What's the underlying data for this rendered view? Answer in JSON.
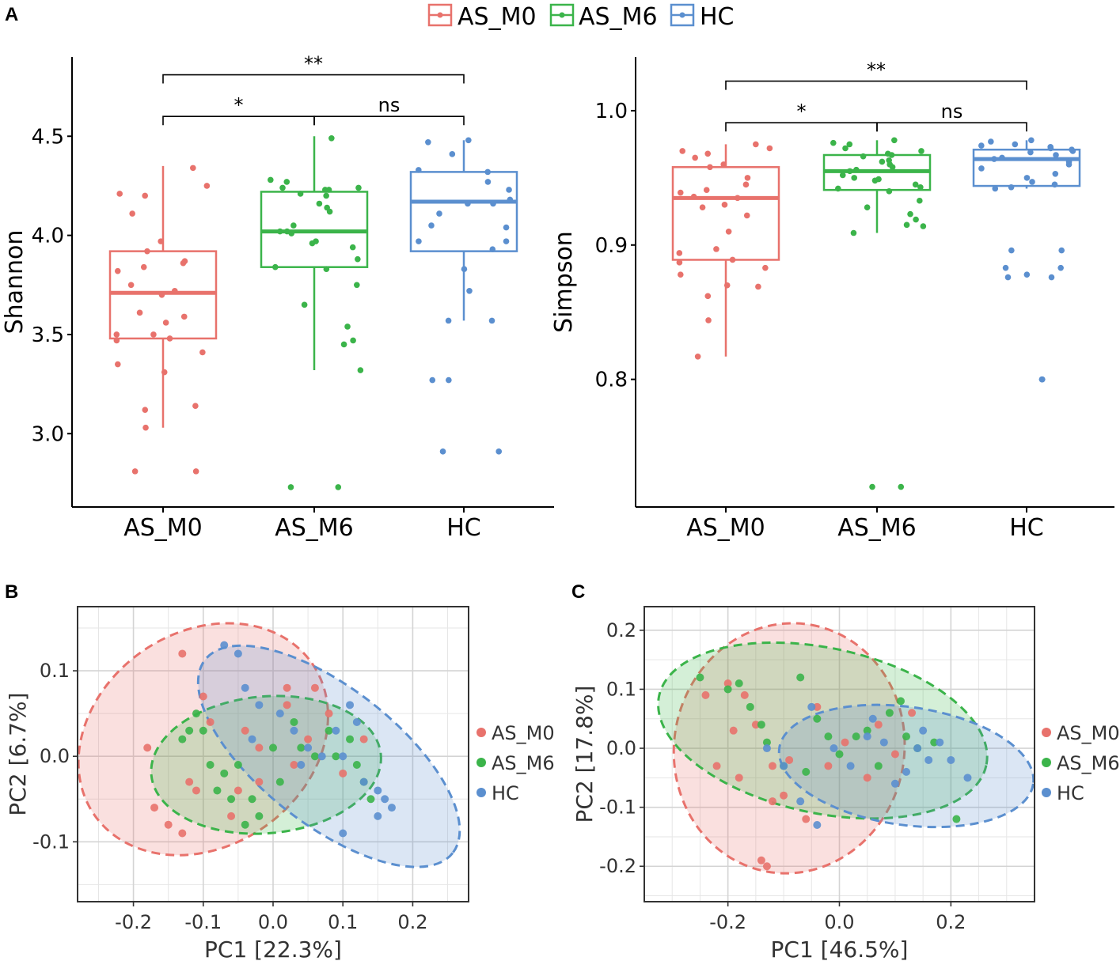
{
  "colors": {
    "AS_M0": "#E8726C",
    "AS_M6": "#3BB44A",
    "HC": "#5B8FCF"
  },
  "legend_top": {
    "items": [
      "AS_M0",
      "AS_M6",
      "HC"
    ]
  },
  "chart_data": [
    {
      "panel": "A",
      "type": "box",
      "ylabel": "Shannon",
      "categories": [
        "AS_M0",
        "AS_M6",
        "HC"
      ],
      "ylim": [
        2.63,
        4.9
      ],
      "yticks": [
        3.0,
        3.5,
        4.0,
        4.5
      ],
      "ytick_labels": [
        "3.0",
        "3.5",
        "4.0",
        "4.5"
      ],
      "boxes": [
        {
          "group": "AS_M0",
          "q1": 3.48,
          "median": 3.71,
          "q3": 3.92,
          "whisker_low": 3.03,
          "whisker_high": 4.35
        },
        {
          "group": "AS_M6",
          "q1": 3.84,
          "median": 4.02,
          "q3": 4.22,
          "whisker_low": 3.32,
          "whisker_high": 4.5
        },
        {
          "group": "HC",
          "q1": 3.92,
          "median": 4.17,
          "q3": 4.32,
          "whisker_low": 3.57,
          "whisker_high": 4.48
        }
      ],
      "points": {
        "AS_M0": [
          4.34,
          4.25,
          4.21,
          4.2,
          4.11,
          3.97,
          3.92,
          3.87,
          3.86,
          3.84,
          3.82,
          3.75,
          3.72,
          3.7,
          3.61,
          3.59,
          3.56,
          3.5,
          3.5,
          3.48,
          3.47,
          3.41,
          3.35,
          3.31,
          3.14,
          3.12,
          3.03,
          2.81,
          2.81
        ],
        "AS_M6": [
          4.49,
          4.28,
          4.27,
          4.24,
          4.24,
          4.23,
          4.23,
          4.21,
          4.2,
          4.16,
          4.14,
          4.12,
          4.05,
          4.02,
          4.02,
          4.01,
          3.97,
          3.96,
          3.94,
          3.88,
          3.84,
          3.83,
          3.75,
          3.65,
          3.54,
          3.47,
          3.45,
          3.32,
          2.73,
          2.73
        ],
        "HC": [
          4.48,
          4.47,
          4.41,
          4.33,
          4.32,
          4.27,
          4.23,
          4.18,
          4.16,
          4.16,
          4.11,
          4.05,
          4.04,
          3.97,
          3.97,
          3.93,
          3.83,
          3.72,
          3.57,
          3.57,
          3.27,
          3.27,
          2.91,
          2.91
        ]
      },
      "brackets": [
        {
          "from": "AS_M0",
          "to": "HC",
          "label": "**",
          "y": 4.81
        },
        {
          "from": "AS_M0",
          "to": "AS_M6",
          "label": "*",
          "y": 4.6
        },
        {
          "from": "AS_M6",
          "to": "HC",
          "label": "ns",
          "y": 4.6
        }
      ]
    },
    {
      "panel": "A2",
      "type": "box",
      "ylabel": "Simpson",
      "categories": [
        "AS_M0",
        "AS_M6",
        "HC"
      ],
      "ylim": [
        0.705,
        1.04
      ],
      "yticks": [
        0.8,
        0.9,
        1.0
      ],
      "ytick_labels": [
        "0.8",
        "0.9",
        "1.0"
      ],
      "boxes": [
        {
          "group": "AS_M0",
          "q1": 0.889,
          "median": 0.935,
          "q3": 0.958,
          "whisker_low": 0.817,
          "whisker_high": 0.975
        },
        {
          "group": "AS_M6",
          "q1": 0.941,
          "median": 0.955,
          "q3": 0.967,
          "whisker_low": 0.909,
          "whisker_high": 0.978
        },
        {
          "group": "HC",
          "q1": 0.944,
          "median": 0.964,
          "q3": 0.971,
          "whisker_low": 0.942,
          "whisker_high": 0.978
        }
      ],
      "points": {
        "AS_M0": [
          0.975,
          0.972,
          0.97,
          0.968,
          0.965,
          0.96,
          0.958,
          0.95,
          0.945,
          0.941,
          0.939,
          0.936,
          0.935,
          0.93,
          0.928,
          0.922,
          0.91,
          0.897,
          0.894,
          0.889,
          0.887,
          0.883,
          0.878,
          0.87,
          0.869,
          0.862,
          0.844,
          0.817
        ],
        "AS_M6": [
          0.978,
          0.976,
          0.975,
          0.972,
          0.97,
          0.968,
          0.967,
          0.966,
          0.963,
          0.962,
          0.96,
          0.958,
          0.956,
          0.955,
          0.952,
          0.95,
          0.949,
          0.948,
          0.945,
          0.943,
          0.942,
          0.94,
          0.933,
          0.928,
          0.923,
          0.919,
          0.915,
          0.914,
          0.909,
          0.72,
          0.72
        ],
        "HC": [
          0.978,
          0.977,
          0.975,
          0.974,
          0.973,
          0.972,
          0.971,
          0.97,
          0.969,
          0.967,
          0.965,
          0.964,
          0.962,
          0.96,
          0.957,
          0.953,
          0.95,
          0.947,
          0.945,
          0.943,
          0.942,
          0.896,
          0.896,
          0.883,
          0.883,
          0.878,
          0.876,
          0.876,
          0.8,
          0.8
        ]
      },
      "brackets": [
        {
          "from": "AS_M0",
          "to": "HC",
          "label": "**",
          "y": 1.022
        },
        {
          "from": "AS_M0",
          "to": "AS_M6",
          "label": "*",
          "y": 0.991
        },
        {
          "from": "AS_M6",
          "to": "HC",
          "label": "ns",
          "y": 0.991
        }
      ]
    },
    {
      "panel": "B",
      "type": "scatter",
      "xlabel": "PC1 [22.3%]",
      "ylabel": "PC2 [6.7%]",
      "xlim": [
        -0.28,
        0.28
      ],
      "ylim": [
        -0.17,
        0.175
      ],
      "xticks": [
        -0.2,
        -0.1,
        0.0,
        0.1,
        0.2
      ],
      "xtick_labels": [
        "-0.2",
        "-0.1",
        "0.0",
        "0.1",
        "0.2"
      ],
      "yticks": [
        -0.1,
        0.0,
        0.1
      ],
      "ytick_labels": [
        "-0.1",
        "0.0",
        "0.1"
      ],
      "legend": [
        "AS_M0",
        "AS_M6",
        "HC"
      ],
      "ellipses": [
        {
          "group": "AS_M0",
          "cx": -0.1,
          "cy": 0.02,
          "rx": 0.19,
          "ry": 0.125,
          "angle": 35
        },
        {
          "group": "AS_M6",
          "cx": -0.01,
          "cy": -0.01,
          "rx": 0.165,
          "ry": 0.08,
          "angle": 5
        },
        {
          "group": "HC",
          "cx": 0.08,
          "cy": 0.0,
          "rx": 0.225,
          "ry": 0.08,
          "angle": -38
        }
      ],
      "points": {
        "AS_M0": [
          [
            -0.13,
            0.12
          ],
          [
            -0.1,
            0.07
          ],
          [
            -0.09,
            0.04
          ],
          [
            -0.02,
            0.01
          ],
          [
            0.02,
            0.08
          ],
          [
            0.06,
            0.08
          ],
          [
            -0.04,
            0.03
          ],
          [
            0.05,
            0.02
          ],
          [
            -0.18,
            0.01
          ],
          [
            -0.12,
            -0.03
          ],
          [
            -0.11,
            -0.04
          ],
          [
            -0.17,
            -0.06
          ],
          [
            -0.15,
            -0.08
          ],
          [
            -0.13,
            -0.09
          ],
          [
            -0.06,
            -0.07
          ],
          [
            -0.05,
            -0.04
          ],
          [
            0.02,
            0.06
          ],
          [
            0.08,
            0.05
          ],
          [
            0.03,
            -0.01
          ],
          [
            0.1,
            -0.02
          ],
          [
            0.13,
            0.02
          ],
          [
            -0.02,
            -0.03
          ]
        ],
        "AS_M6": [
          [
            -0.11,
            0.05
          ],
          [
            -0.12,
            0.03
          ],
          [
            -0.13,
            0.02
          ],
          [
            -0.1,
            0.03
          ],
          [
            -0.09,
            -0.01
          ],
          [
            -0.07,
            -0.02
          ],
          [
            -0.06,
            -0.05
          ],
          [
            -0.05,
            -0.01
          ],
          [
            -0.03,
            -0.05
          ],
          [
            -0.02,
            -0.07
          ],
          [
            0.01,
            -0.03
          ],
          [
            0.03,
            0.04
          ],
          [
            0.04,
            0.01
          ],
          [
            0.06,
            0.0
          ],
          [
            0.08,
            0.03
          ],
          [
            0.09,
            0.0
          ],
          [
            0.11,
            0.02
          ],
          [
            0.13,
            -0.03
          ],
          [
            0.12,
            -0.01
          ],
          [
            0.14,
            -0.05
          ],
          [
            -0.08,
            -0.04
          ],
          [
            -0.04,
            -0.08
          ],
          [
            0.0,
            0.01
          ]
        ],
        "HC": [
          [
            -0.07,
            0.13
          ],
          [
            -0.05,
            0.12
          ],
          [
            -0.04,
            0.08
          ],
          [
            -0.02,
            0.06
          ],
          [
            0.01,
            0.05
          ],
          [
            0.03,
            0.03
          ],
          [
            0.05,
            0.01
          ],
          [
            0.07,
            0.0
          ],
          [
            0.09,
            0.03
          ],
          [
            0.11,
            0.06
          ],
          [
            0.12,
            0.04
          ],
          [
            0.1,
            0.0
          ],
          [
            0.13,
            -0.03
          ],
          [
            0.15,
            -0.04
          ],
          [
            0.16,
            -0.05
          ],
          [
            0.17,
            -0.06
          ],
          [
            0.15,
            -0.07
          ],
          [
            0.1,
            -0.09
          ],
          [
            -0.03,
            0.02
          ],
          [
            0.04,
            -0.01
          ]
        ]
      }
    },
    {
      "panel": "C",
      "type": "scatter",
      "xlabel": "PC1 [46.5%]",
      "ylabel": "PC2 [17.8%]",
      "xlim": [
        -0.35,
        0.35
      ],
      "ylim": [
        -0.26,
        0.24
      ],
      "xticks": [
        -0.2,
        0.0,
        0.2
      ],
      "xtick_labels": [
        "-0.2",
        "0.0",
        "0.2"
      ],
      "yticks": [
        -0.2,
        -0.1,
        0.0,
        0.1,
        0.2
      ],
      "ytick_labels": [
        "-0.2",
        "-0.1",
        "0.0",
        "0.1",
        "0.2"
      ],
      "legend": [
        "AS_M0",
        "AS_M6",
        "HC"
      ],
      "ellipses": [
        {
          "group": "AS_M0",
          "cx": -0.09,
          "cy": 0.0,
          "rx": 0.225,
          "ry": 0.195,
          "angle": 80
        },
        {
          "group": "AS_M6",
          "cx": -0.03,
          "cy": 0.03,
          "rx": 0.3,
          "ry": 0.14,
          "angle": -12
        },
        {
          "group": "HC",
          "cx": 0.12,
          "cy": -0.03,
          "rx": 0.23,
          "ry": 0.1,
          "angle": -8
        }
      ],
      "points": {
        "AS_M0": [
          [
            -0.24,
            0.09
          ],
          [
            -0.2,
            0.11
          ],
          [
            -0.17,
            0.09
          ],
          [
            -0.15,
            0.04
          ],
          [
            -0.19,
            0.03
          ],
          [
            -0.22,
            -0.03
          ],
          [
            -0.18,
            -0.05
          ],
          [
            -0.12,
            -0.03
          ],
          [
            -0.1,
            -0.08
          ],
          [
            -0.06,
            -0.12
          ],
          [
            -0.13,
            -0.2
          ],
          [
            -0.14,
            -0.19
          ],
          [
            -0.04,
            0.07
          ],
          [
            -0.02,
            -0.03
          ],
          [
            0.01,
            0.01
          ],
          [
            0.05,
            -0.05
          ],
          [
            0.07,
            0.04
          ],
          [
            0.1,
            -0.01
          ],
          [
            0.13,
            0.06
          ],
          [
            -0.09,
            -0.02
          ],
          [
            -0.12,
            -0.09
          ]
        ],
        "AS_M6": [
          [
            -0.25,
            0.12
          ],
          [
            -0.2,
            0.1
          ],
          [
            -0.18,
            0.11
          ],
          [
            -0.16,
            0.07
          ],
          [
            -0.14,
            0.04
          ],
          [
            -0.13,
            0.01
          ],
          [
            -0.1,
            -0.03
          ],
          [
            -0.07,
            0.12
          ],
          [
            -0.04,
            0.05
          ],
          [
            -0.02,
            0.02
          ],
          [
            0.0,
            -0.01
          ],
          [
            0.03,
            0.02
          ],
          [
            0.05,
            0.03
          ],
          [
            0.07,
            -0.03
          ],
          [
            0.09,
            0.06
          ],
          [
            0.12,
            0.02
          ],
          [
            0.14,
            0.0
          ],
          [
            0.17,
            0.01
          ],
          [
            0.21,
            -0.12
          ],
          [
            -0.06,
            -0.04
          ],
          [
            0.11,
            0.08
          ]
        ],
        "HC": [
          [
            -0.13,
            0.0
          ],
          [
            -0.1,
            -0.03
          ],
          [
            -0.07,
            -0.09
          ],
          [
            -0.04,
            -0.13
          ],
          [
            -0.01,
            0.0
          ],
          [
            0.02,
            -0.03
          ],
          [
            0.05,
            0.02
          ],
          [
            0.08,
            0.01
          ],
          [
            0.1,
            -0.06
          ],
          [
            0.12,
            -0.04
          ],
          [
            0.14,
            0.0
          ],
          [
            0.15,
            0.03
          ],
          [
            0.16,
            -0.02
          ],
          [
            0.18,
            0.01
          ],
          [
            0.2,
            -0.02
          ],
          [
            0.23,
            -0.05
          ],
          [
            -0.05,
            0.07
          ],
          [
            0.06,
            0.05
          ]
        ]
      }
    }
  ],
  "panel_letters": {
    "A": "A",
    "B": "B",
    "C": "C"
  }
}
